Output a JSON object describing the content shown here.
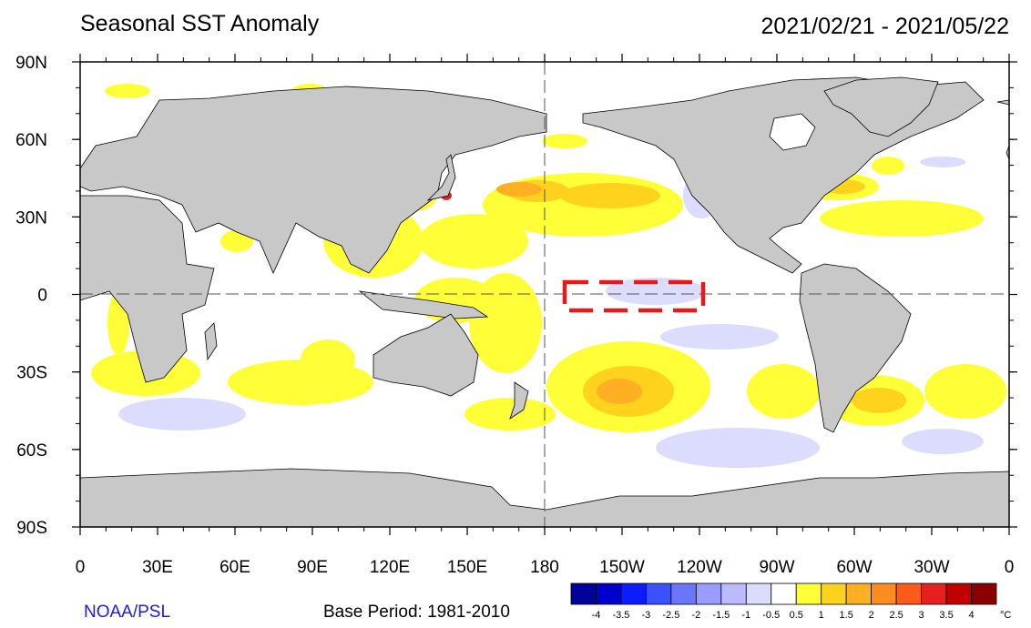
{
  "header": {
    "title": "Seasonal SST Anomaly",
    "date_range": "2021/02/21 - 2021/05/22"
  },
  "footer": {
    "credit": "NOAA/PSL",
    "base_period": "Base Period: 1981-2010"
  },
  "map": {
    "type": "filled contour map",
    "variable": "sea surface temperature anomaly",
    "lon_ticks": [
      "0",
      "30E",
      "60E",
      "90E",
      "120E",
      "150E",
      "180",
      "150W",
      "120W",
      "90W",
      "60W",
      "30W",
      "0"
    ],
    "lat_ticks": [
      "90N",
      "60N",
      "30N",
      "0",
      "30S",
      "60S",
      "90S"
    ],
    "land_color": "#c8c8c8",
    "ocean_color": "#ffffff",
    "reference_lines": [
      "equator dashed",
      "180 meridian dashed"
    ],
    "annotation": {
      "type": "red dashed rectangle",
      "region": "Nino 3.4",
      "lon_range": [
        "170W",
        "120W"
      ],
      "lat_range": [
        "5N",
        "5S"
      ],
      "color": "#e81919"
    }
  },
  "colorbar": {
    "unit": "°C",
    "levels": [
      "-4",
      "-3.5",
      "-3",
      "-2.5",
      "-2",
      "-1.5",
      "-1",
      "-0.5",
      "0.5",
      "1",
      "1.5",
      "2",
      "2.5",
      "3",
      "3.5",
      "4"
    ],
    "colors": [
      "#00009c",
      "#0000cd",
      "#0b1cff",
      "#3a51ff",
      "#6b76ff",
      "#9a9cff",
      "#bdbbff",
      "#dcdcff",
      "#ffffff",
      "#ffff38",
      "#ffd21e",
      "#ffb022",
      "#ff8c1e",
      "#ff5a1a",
      "#e61f1f",
      "#c00000",
      "#8a0000"
    ]
  }
}
